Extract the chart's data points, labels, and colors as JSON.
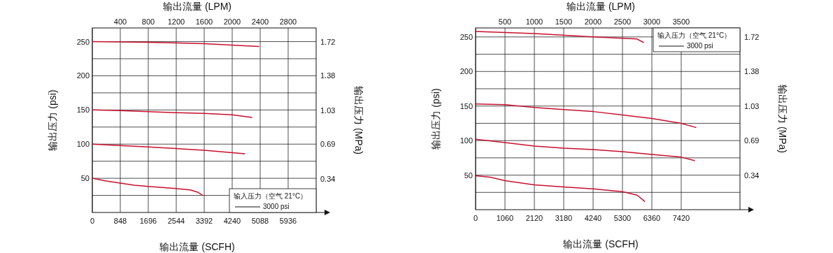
{
  "chart_data": [
    {
      "type": "line",
      "xlabel": "输出流量 (SCFH)",
      "x2label": "输出流量 (LPM)",
      "ylabel": "输出压力 (psi)",
      "y2label": "输出压力 (MPa)",
      "xlim": [
        0,
        6784
      ],
      "xticks": [
        0,
        848,
        1696,
        2544,
        3392,
        4240,
        5088,
        5936
      ],
      "x2lim": [
        0,
        3200
      ],
      "x2ticks": [
        400,
        800,
        1200,
        1600,
        2000,
        2400,
        2800
      ],
      "ylim": [
        0,
        270
      ],
      "yticks": [
        {
          "value": 25,
          "label": null
        },
        50,
        {
          "value": 75,
          "label": null
        },
        100,
        {
          "value": 125,
          "label": null
        },
        150,
        {
          "value": 175,
          "label": null
        },
        200,
        {
          "value": 225,
          "label": null
        },
        250
      ],
      "y2lim": [
        0,
        1.86
      ],
      "y2ticks": [
        0.34,
        0.69,
        1.03,
        1.38,
        1.72
      ],
      "grid": true,
      "annotations": [
        "输入压力（空气 21°C）",
        "3000 psi"
      ],
      "series": [
        {
          "color": "#c8102e",
          "x": [
            0,
            1696,
            3392,
            5046
          ],
          "values": [
            250,
            249,
            247,
            243
          ]
        },
        {
          "color": "#c8102e",
          "x": [
            0,
            848,
            2544,
            3392,
            4240,
            4834
          ],
          "values": [
            150,
            149,
            146,
            145,
            143,
            139
          ]
        },
        {
          "color": "#c8102e",
          "x": [
            0,
            1696,
            3392,
            4622
          ],
          "values": [
            100,
            96,
            91,
            86
          ]
        },
        {
          "color": "#c8102e",
          "x": [
            0,
            424,
            848,
            1272,
            1696,
            2544,
            2968,
            3180,
            3350
          ],
          "values": [
            50,
            46,
            43,
            40,
            38,
            35,
            33,
            30,
            25
          ]
        }
      ]
    },
    {
      "type": "line",
      "xlabel": "输出流量 (SCFH)",
      "x2label": "输出流量 (LPM)",
      "ylabel": "输出压力 (psi)",
      "y2label": "输出压力 (MPa)",
      "xlim": [
        0,
        9540
      ],
      "xticks": [
        0,
        1060,
        2120,
        3180,
        4240,
        5300,
        6360,
        7420
      ],
      "x2lim": [
        0,
        4500
      ],
      "x2ticks": [
        500,
        1000,
        1500,
        2000,
        2500,
        3000,
        3500
      ],
      "ylim": [
        0,
        263
      ],
      "yticks": [
        {
          "value": 25,
          "label": null
        },
        50,
        {
          "value": 75,
          "label": null
        },
        100,
        {
          "value": 125,
          "label": null
        },
        150,
        {
          "value": 175,
          "label": null
        },
        200,
        {
          "value": 225,
          "label": null
        },
        250
      ],
      "y2lim": [
        0,
        1.81
      ],
      "y2ticks": [
        0.34,
        0.69,
        1.03,
        1.38,
        1.72
      ],
      "grid": true,
      "annotations": [
        "输入压力（空气 21°C）",
        "3000 psi"
      ],
      "series": [
        {
          "color": "#c8102e",
          "x": [
            0,
            2120,
            4240,
            5300,
            5830,
            6057
          ],
          "values": [
            258,
            255,
            250,
            248,
            247,
            242
          ]
        },
        {
          "color": "#c8102e",
          "x": [
            0,
            1060,
            2120,
            3180,
            4240,
            5300,
            6360,
            7420,
            7950
          ],
          "values": [
            153,
            152,
            148,
            145,
            142,
            137,
            132,
            125,
            119
          ]
        },
        {
          "color": "#c8102e",
          "x": [
            0,
            1060,
            2120,
            3180,
            4240,
            5300,
            6360,
            7420,
            7900
          ],
          "values": [
            102,
            97,
            92,
            89,
            87,
            84,
            80,
            76,
            71
          ]
        },
        {
          "color": "#c8102e",
          "x": [
            0,
            530,
            1060,
            2120,
            3180,
            4240,
            5300,
            5830,
            6100
          ],
          "values": [
            49,
            47,
            42,
            36,
            33,
            30,
            26,
            21,
            12
          ]
        }
      ]
    }
  ]
}
